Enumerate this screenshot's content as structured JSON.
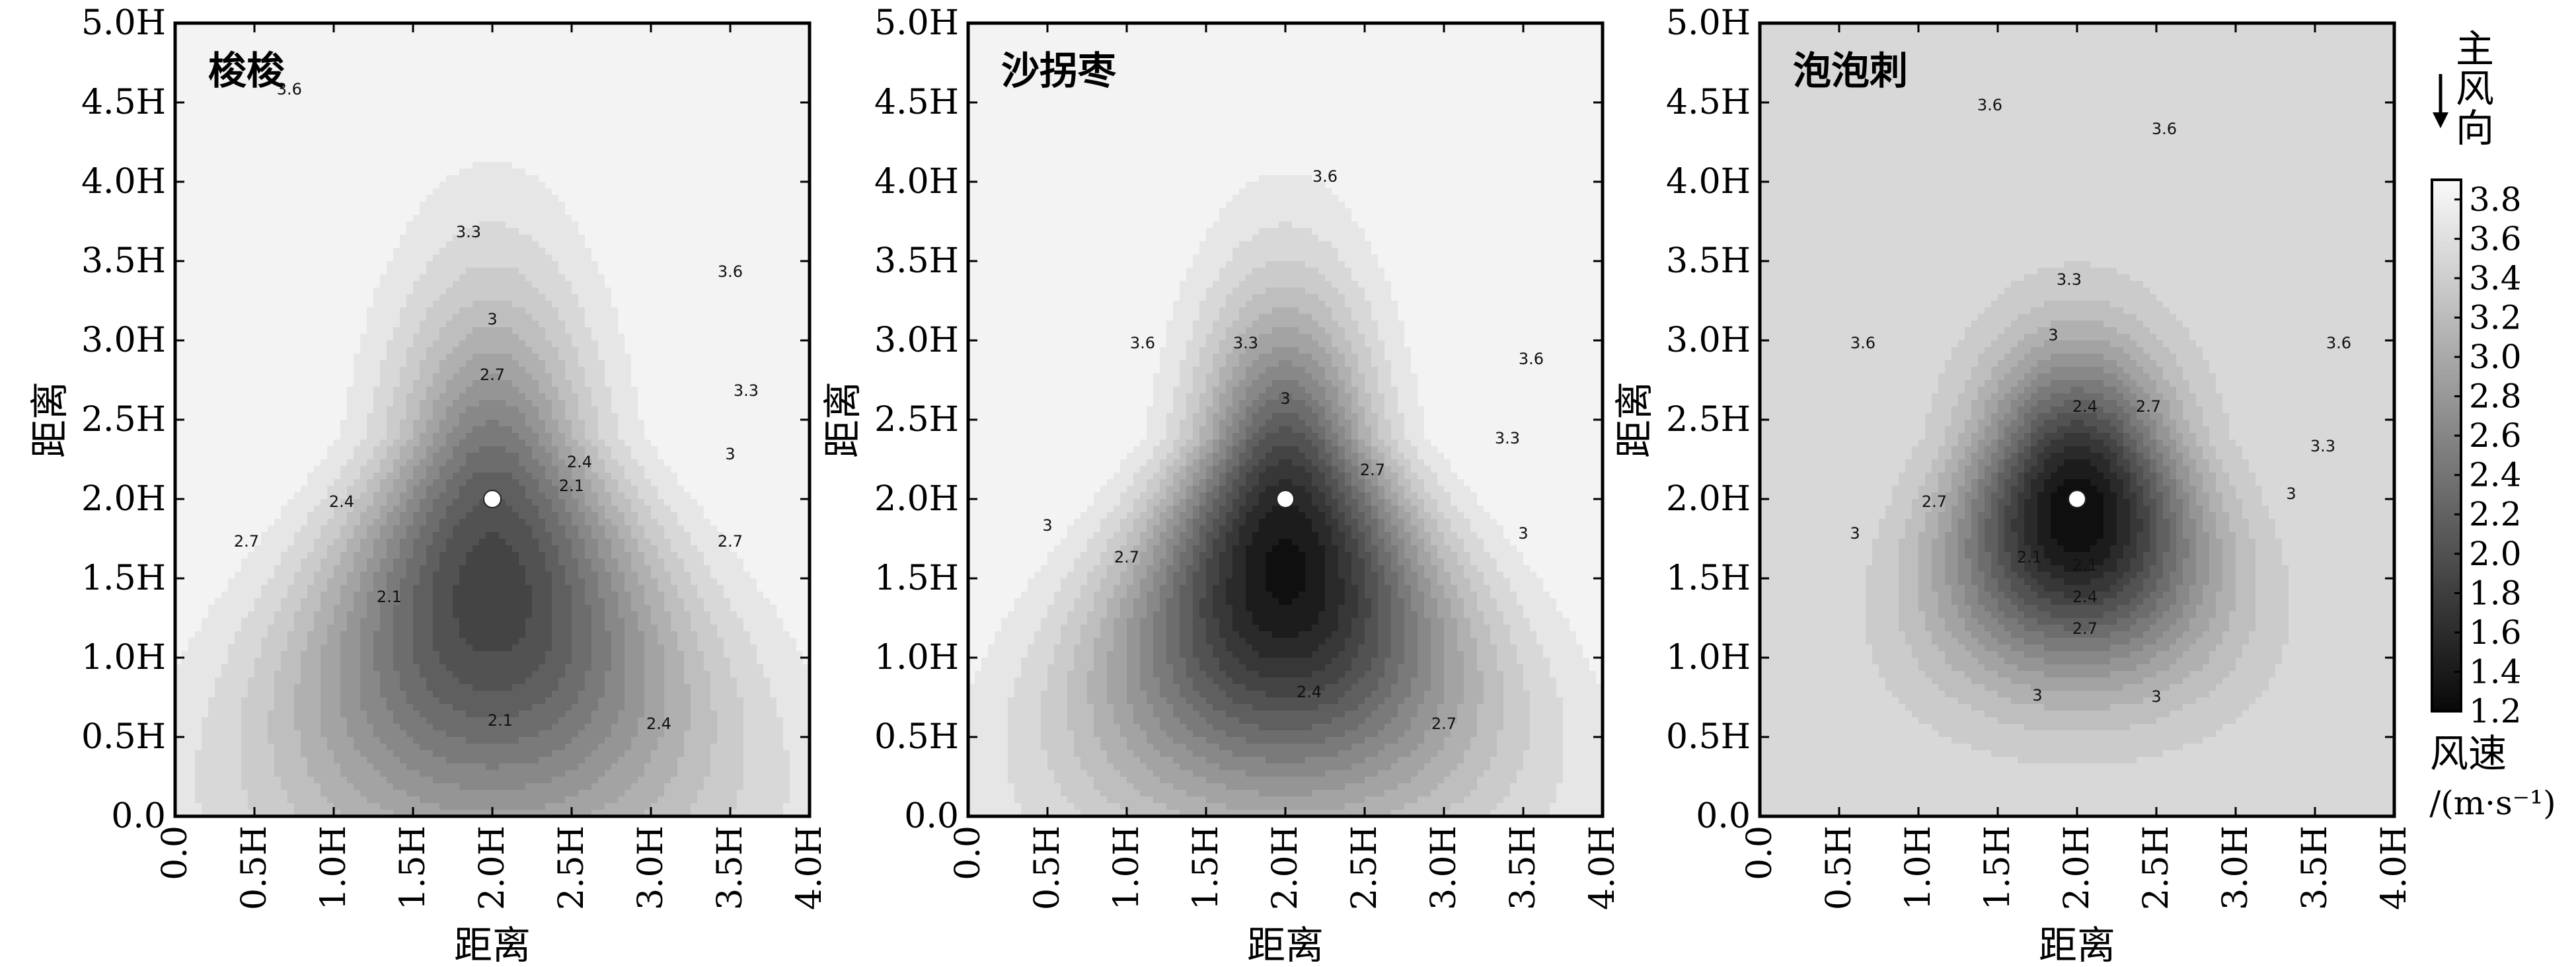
{
  "chart_data": {
    "type": "heatmap",
    "subtype": "filled-contour",
    "x_ticks": [
      "0.0",
      "0.5H",
      "1.0H",
      "1.5H",
      "2.0H",
      "2.5H",
      "3.0H",
      "3.5H",
      "4.0H"
    ],
    "y_ticks": [
      "0.0",
      "0.5H",
      "1.0H",
      "1.5H",
      "2.0H",
      "2.5H",
      "3.0H",
      "3.5H",
      "4.0H",
      "4.5H",
      "5.0H"
    ],
    "xlim": [
      0,
      4
    ],
    "ylim": [
      0,
      5
    ],
    "xlabel": "距离",
    "ylabel": "距离",
    "shrub_position": {
      "x": 2.0,
      "y": 2.0
    },
    "grid": false,
    "colormap": "gray",
    "colorbar": {
      "range": [
        1.2,
        3.9
      ],
      "ticks": [
        "3.8",
        "3.6",
        "3.4",
        "3.2",
        "3.0",
        "2.8",
        "2.6",
        "2.4",
        "2.2",
        "2.0",
        "1.8",
        "1.6",
        "1.4",
        "1.2"
      ],
      "title_line1": "风速",
      "title_line2": "/(m·s⁻¹)"
    },
    "wind_direction_label": [
      "主",
      "风",
      "向"
    ],
    "panels": [
      {
        "label": "梭梭",
        "shape": {
          "y_center": 1.4,
          "y_spread": 1.25,
          "x_spread": 0.47,
          "x_widen": 0.9,
          "scale": 0.55,
          "min_speed": 1.85,
          "amplitude": 2.05,
          "plateau": 3.95
        },
        "contour_labels": [
          {
            "text": "3.6",
            "x": 0.72,
            "y": 4.55
          },
          {
            "text": "3.3",
            "x": 1.85,
            "y": 3.65
          },
          {
            "text": "3",
            "x": 2.0,
            "y": 3.1
          },
          {
            "text": "2.7",
            "x": 2.0,
            "y": 2.75
          },
          {
            "text": "2.4",
            "x": 1.05,
            "y": 1.95
          },
          {
            "text": "2.7",
            "x": 0.45,
            "y": 1.7
          },
          {
            "text": "2.1",
            "x": 1.35,
            "y": 1.35
          },
          {
            "text": "2.1",
            "x": 2.05,
            "y": 0.57
          },
          {
            "text": "2.4",
            "x": 3.05,
            "y": 0.55
          },
          {
            "text": "2.7",
            "x": 3.5,
            "y": 1.7
          },
          {
            "text": "2.4",
            "x": 2.55,
            "y": 2.2
          },
          {
            "text": "2.1",
            "x": 2.5,
            "y": 2.05
          },
          {
            "text": "3",
            "x": 3.5,
            "y": 2.25
          },
          {
            "text": "3.3",
            "x": 3.6,
            "y": 2.65
          },
          {
            "text": "3.6",
            "x": 3.5,
            "y": 3.4
          }
        ]
      },
      {
        "label": "沙拐枣",
        "shape": {
          "y_center": 1.55,
          "y_spread": 1.15,
          "x_spread": 0.43,
          "x_widen": 0.95,
          "scale": 0.6,
          "min_speed": 1.3,
          "amplitude": 2.6,
          "plateau": 3.9
        },
        "contour_labels": [
          {
            "text": "3.6",
            "x": 2.25,
            "y": 4.0
          },
          {
            "text": "3.6",
            "x": 1.1,
            "y": 2.95
          },
          {
            "text": "3.3",
            "x": 1.75,
            "y": 2.95
          },
          {
            "text": "3.6",
            "x": 3.55,
            "y": 2.85
          },
          {
            "text": "3",
            "x": 2.0,
            "y": 2.6
          },
          {
            "text": "3.3",
            "x": 3.4,
            "y": 2.35
          },
          {
            "text": "2.7",
            "x": 2.55,
            "y": 2.15
          },
          {
            "text": "3",
            "x": 0.5,
            "y": 1.8
          },
          {
            "text": "2.7",
            "x": 1.0,
            "y": 1.6
          },
          {
            "text": "3",
            "x": 3.5,
            "y": 1.75
          },
          {
            "text": "2.4",
            "x": 2.15,
            "y": 0.75
          },
          {
            "text": "2.7",
            "x": 3.0,
            "y": 0.55
          }
        ]
      },
      {
        "label": "泡泡刺",
        "shape": {
          "y_center": 1.9,
          "y_spread": 0.85,
          "x_spread": 0.55,
          "x_widen": 0.6,
          "scale": 0.8,
          "min_speed": 1.2,
          "amplitude": 2.4,
          "plateau": 3.85
        },
        "contour_labels": [
          {
            "text": "3.6",
            "x": 1.45,
            "y": 4.45
          },
          {
            "text": "3.6",
            "x": 2.55,
            "y": 4.3
          },
          {
            "text": "3.6",
            "x": 0.65,
            "y": 2.95
          },
          {
            "text": "3.6",
            "x": 3.65,
            "y": 2.95
          },
          {
            "text": "3.3",
            "x": 1.95,
            "y": 3.35
          },
          {
            "text": "3",
            "x": 1.85,
            "y": 3.0
          },
          {
            "text": "2.4",
            "x": 2.05,
            "y": 2.55
          },
          {
            "text": "2.7",
            "x": 2.45,
            "y": 2.55
          },
          {
            "text": "3.3",
            "x": 3.55,
            "y": 2.3
          },
          {
            "text": "3",
            "x": 3.35,
            "y": 2.0
          },
          {
            "text": "2.7",
            "x": 1.1,
            "y": 1.95
          },
          {
            "text": "3",
            "x": 0.6,
            "y": 1.75
          },
          {
            "text": "2.1",
            "x": 1.7,
            "y": 1.6
          },
          {
            "text": "2.1",
            "x": 2.05,
            "y": 1.55
          },
          {
            "text": "2.4",
            "x": 2.05,
            "y": 1.35
          },
          {
            "text": "2.7",
            "x": 2.05,
            "y": 1.15
          },
          {
            "text": "3",
            "x": 1.75,
            "y": 0.73
          },
          {
            "text": "3",
            "x": 2.5,
            "y": 0.72
          }
        ]
      }
    ]
  }
}
